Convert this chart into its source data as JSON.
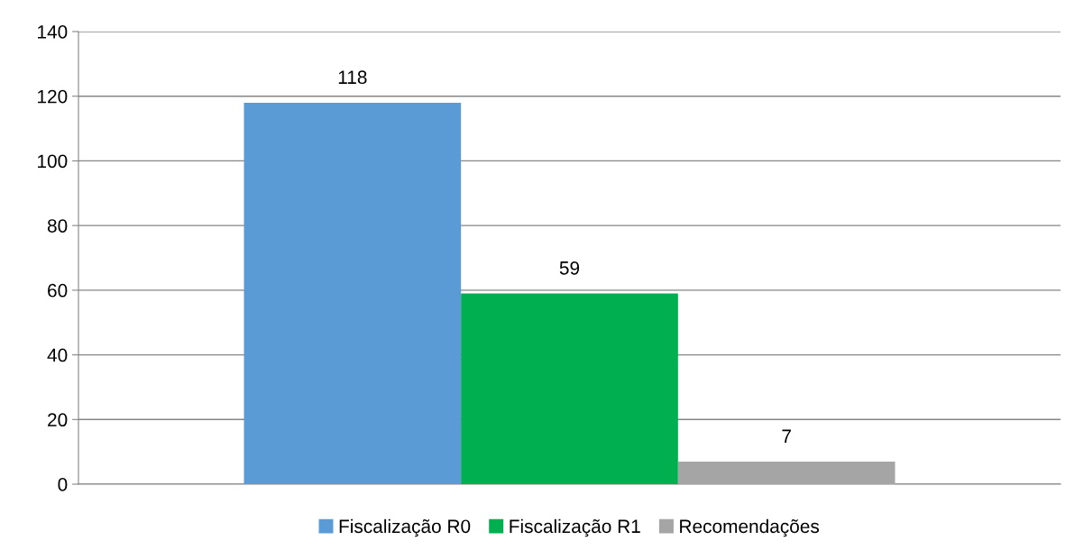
{
  "chart_data": {
    "type": "bar",
    "categories": [
      null
    ],
    "series": [
      {
        "name": "Fiscalização R0",
        "color": "#5b9bd5",
        "values": [
          118
        ]
      },
      {
        "name": "Fiscalização R1",
        "color": "#00b050",
        "values": [
          59
        ]
      },
      {
        "name": "Recomendações",
        "color": "#a5a5a5",
        "values": [
          7
        ]
      }
    ],
    "ylim": [
      0,
      140
    ],
    "yticks": [
      0,
      20,
      40,
      60,
      80,
      100,
      120,
      140
    ],
    "grid": "y",
    "legend": "bottom",
    "data_labels": true
  }
}
